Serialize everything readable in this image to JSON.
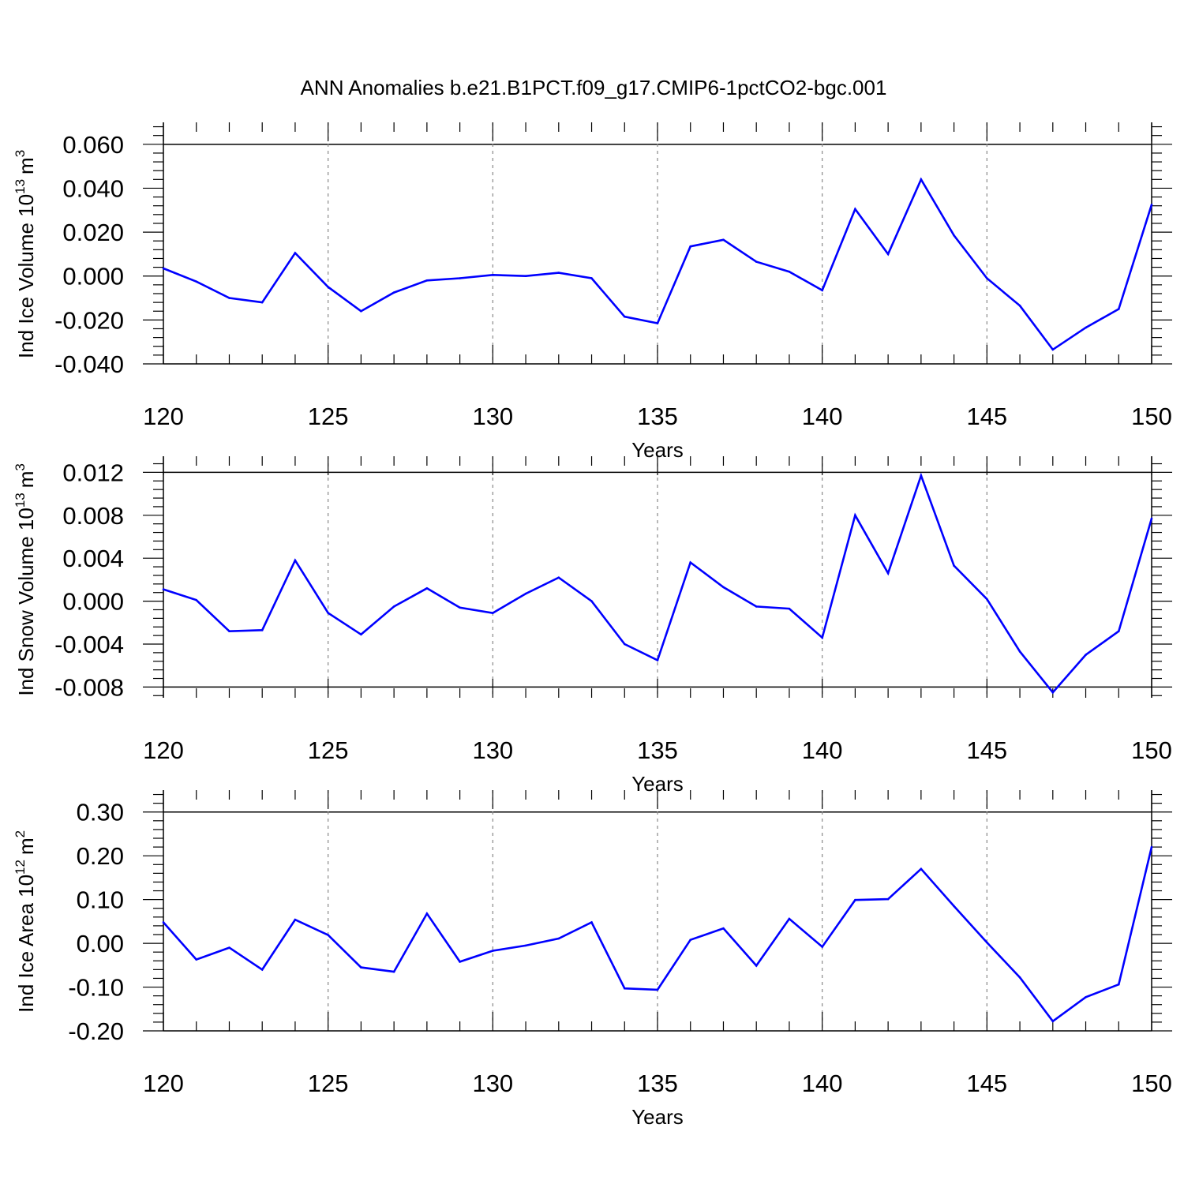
{
  "title": "ANN Anomalies b.e21.B1PCT.f09_g17.CMIP6-1pctCO2-bgc.001",
  "colors": {
    "line": "#0000ff",
    "axis": "#000000",
    "grid": "#888888"
  },
  "chart_data": [
    {
      "type": "line",
      "xlabel": "Years",
      "ylabel": {
        "text": "Ind Ice Volume 10",
        "exp": "13",
        "unit": "m",
        "unit_exp": "3"
      },
      "xlim": [
        120,
        150
      ],
      "ylim": [
        -0.04,
        0.07
      ],
      "x_ticks": [
        "120",
        "125",
        "130",
        "135",
        "140",
        "145",
        "150"
      ],
      "y_ticks": [
        "0.060",
        "0.040",
        "0.020",
        "0.000",
        "-0.020",
        "-0.040"
      ],
      "x": [
        120,
        121,
        122,
        123,
        124,
        125,
        126,
        127,
        128,
        129,
        130,
        131,
        132,
        133,
        134,
        135,
        136,
        137,
        138,
        139,
        140,
        141,
        142,
        143,
        144,
        145,
        146,
        147,
        148,
        149,
        150
      ],
      "values": [
        0.0035,
        -0.0025,
        -0.01,
        -0.012,
        0.0105,
        -0.005,
        -0.016,
        -0.0075,
        -0.002,
        -0.001,
        0.0005,
        0.0,
        0.0015,
        -0.001,
        -0.0185,
        -0.0215,
        0.0135,
        0.0165,
        0.0065,
        0.002,
        -0.0065,
        0.0305,
        0.01,
        0.044,
        0.0185,
        -0.001,
        -0.0135,
        -0.0335,
        -0.0235,
        -0.015,
        0.0325
      ]
    },
    {
      "type": "line",
      "xlabel": "Years",
      "ylabel": {
        "text": "Ind Snow Volume 10",
        "exp": "13",
        "unit": "m",
        "unit_exp": "3"
      },
      "xlim": [
        120,
        150
      ],
      "ylim": [
        -0.009,
        0.0135
      ],
      "x_ticks": [
        "120",
        "125",
        "130",
        "135",
        "140",
        "145",
        "150"
      ],
      "y_ticks": [
        "0.012",
        "0.008",
        "0.004",
        "0.000",
        "-0.004",
        "-0.008"
      ],
      "x": [
        120,
        121,
        122,
        123,
        124,
        125,
        126,
        127,
        128,
        129,
        130,
        131,
        132,
        133,
        134,
        135,
        136,
        137,
        138,
        139,
        140,
        141,
        142,
        143,
        144,
        145,
        146,
        147,
        148,
        149,
        150
      ],
      "values": [
        0.0011,
        0.0001,
        -0.0028,
        -0.0027,
        0.0038,
        -0.0011,
        -0.0031,
        -0.0005,
        0.0012,
        -0.0006,
        -0.0011,
        0.0007,
        0.0022,
        0.0,
        -0.004,
        -0.0055,
        0.0036,
        0.0013,
        -0.0005,
        -0.0007,
        -0.0034,
        0.008,
        0.0026,
        0.0117,
        0.0033,
        0.0002,
        -0.0047,
        -0.0085,
        -0.005,
        -0.0028,
        0.0077
      ]
    },
    {
      "type": "line",
      "xlabel": "Years",
      "ylabel": {
        "text": "Ind Ice Area 10",
        "exp": "12",
        "unit": "m",
        "unit_exp": "2"
      },
      "xlim": [
        120,
        150
      ],
      "ylim": [
        -0.2,
        0.35
      ],
      "x_ticks": [
        "120",
        "125",
        "130",
        "135",
        "140",
        "145",
        "150"
      ],
      "y_ticks": [
        "0.30",
        "0.20",
        "0.10",
        "0.00",
        "-0.10",
        "-0.20"
      ],
      "x": [
        120,
        121,
        122,
        123,
        124,
        125,
        126,
        127,
        128,
        129,
        130,
        131,
        132,
        133,
        134,
        135,
        136,
        137,
        138,
        139,
        140,
        141,
        142,
        143,
        144,
        145,
        146,
        147,
        148,
        149,
        150
      ],
      "values": [
        0.048,
        -0.037,
        -0.01,
        -0.06,
        0.054,
        0.019,
        -0.055,
        -0.065,
        0.068,
        -0.042,
        -0.017,
        -0.005,
        0.011,
        0.048,
        -0.103,
        -0.106,
        0.008,
        0.034,
        -0.051,
        0.056,
        -0.008,
        0.099,
        0.101,
        0.17,
        0.085,
        0.002,
        -0.078,
        -0.178,
        -0.123,
        -0.094,
        0.22
      ]
    }
  ]
}
